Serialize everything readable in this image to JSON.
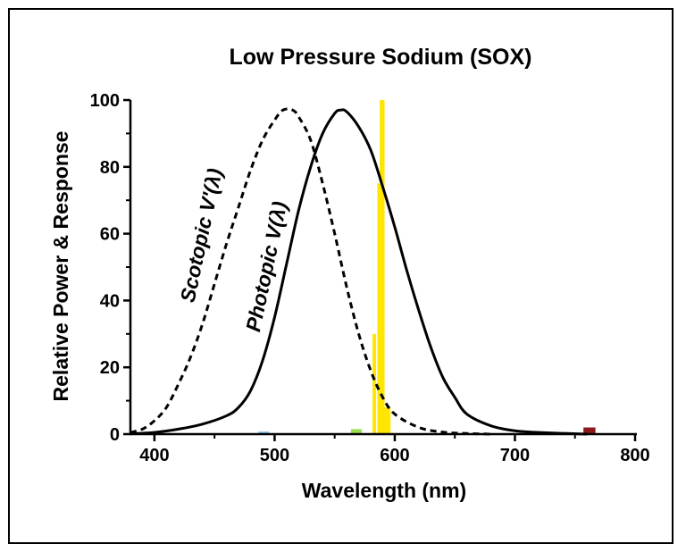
{
  "chart_data": {
    "type": "line",
    "title": "Low Pressure Sodium (SOX)",
    "xlabel": "Wavelength (nm)",
    "ylabel": "Relative Power & Response",
    "xlim": [
      380,
      800
    ],
    "ylim": [
      0,
      100
    ],
    "xticks": [
      "400",
      "500",
      "600",
      "700",
      "800"
    ],
    "yticks": [
      "0",
      "20",
      "40",
      "60",
      "80",
      "100"
    ],
    "grid": false,
    "series": [
      {
        "name": "Photopic V(λ)",
        "label_prefix": "Photopic ",
        "label_func": "V",
        "label_arg": "(λ)",
        "style": "solid",
        "color": "#000000",
        "x": [
          380,
          400,
          420,
          440,
          460,
          470,
          480,
          490,
          500,
          510,
          520,
          530,
          540,
          550,
          555,
          560,
          570,
          580,
          590,
          600,
          610,
          620,
          630,
          640,
          650,
          660,
          680,
          700,
          720,
          760
        ],
        "y": [
          0.1,
          0.5,
          1.5,
          3,
          5.5,
          8,
          13,
          22,
          35,
          51,
          67,
          80,
          90,
          96,
          97,
          96.5,
          92,
          85,
          74,
          62,
          49,
          37,
          26,
          17,
          11,
          6,
          2.5,
          1,
          0.5,
          0
        ]
      },
      {
        "name": "Scotopic V'(λ)",
        "label_prefix": "Scotopic ",
        "label_func": "V'",
        "label_arg": "(λ)",
        "style": "dashed",
        "color": "#000000",
        "x": [
          380,
          390,
          400,
          410,
          420,
          430,
          440,
          450,
          460,
          470,
          480,
          490,
          500,
          507,
          515,
          520,
          530,
          540,
          550,
          560,
          570,
          580,
          590,
          600,
          620,
          640,
          660,
          680
        ],
        "y": [
          0.5,
          1.5,
          4,
          8,
          15,
          23,
          33,
          45,
          57,
          68,
          79,
          88,
          94,
          97,
          97,
          95,
          88,
          75,
          60,
          44,
          30,
          19,
          11,
          6,
          2,
          0.6,
          0.2,
          0
        ]
      }
    ],
    "spectral_lines": [
      {
        "x": 583,
        "width": 3,
        "value": 30,
        "color": "#FFE600"
      },
      {
        "x": 587,
        "width": 3,
        "value": 75,
        "color": "#FFE600"
      },
      {
        "x": 589.5,
        "width": 4,
        "value": 100,
        "color": "#FFE600"
      },
      {
        "x": 594,
        "width": 5,
        "value": 8,
        "color": "#FFE600"
      },
      {
        "x": 491,
        "width": 9,
        "value": 0.8,
        "color": "#8EC5E8"
      },
      {
        "x": 568,
        "width": 9,
        "value": 1.5,
        "color": "#9BE04A"
      },
      {
        "x": 762,
        "width": 10,
        "value": 2,
        "color": "#8B1A1A"
      }
    ]
  }
}
